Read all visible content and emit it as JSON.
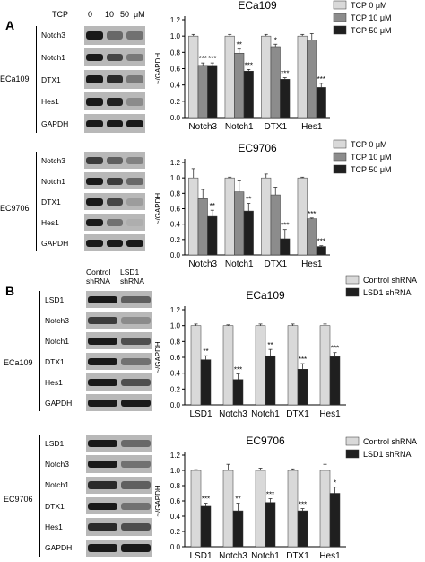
{
  "panels": {
    "A": {
      "letter": "A",
      "treatment_label": "TCP",
      "doses": [
        "0",
        "10",
        "50",
        "μM"
      ],
      "blots": [
        {
          "cell_line": "ECa109",
          "rows": [
            "Notch3",
            "Notch1",
            "DTX1",
            "Hes1",
            "GAPDH"
          ]
        },
        {
          "cell_line": "EC9706",
          "rows": [
            "Notch3",
            "Notch1",
            "DTX1",
            "Hes1",
            "GAPDH"
          ]
        }
      ]
    },
    "B": {
      "letter": "B",
      "col_header_1": "Control shRNA",
      "col_header_2": "LSD1 shRNA",
      "blots": [
        {
          "cell_line": "ECa109",
          "rows": [
            "LSD1",
            "Notch3",
            "Notch1",
            "DTX1",
            "Hes1",
            "GAPDH"
          ]
        },
        {
          "cell_line": "EC9706",
          "rows": [
            "LSD1",
            "Notch3",
            "Notch1",
            "DTX1",
            "Hes1",
            "GAPDH"
          ]
        }
      ]
    }
  },
  "colors": {
    "light": "#d9d9d9",
    "mid": "#8c8c8c",
    "dark": "#1f1f1f"
  },
  "chart_data": [
    {
      "type": "bar",
      "title": "ECa109",
      "ylabel": "~/GAPDH",
      "ylim": [
        0,
        1.2
      ],
      "yticks": [
        "0.0",
        "0.2",
        "0.4",
        "0.6",
        "0.8",
        "1.0",
        "1.2"
      ],
      "categories": [
        "Notch3",
        "Notch1",
        "DTX1",
        "Hes1"
      ],
      "series": [
        {
          "name": "TCP  0 μM",
          "color": "#d9d9d9",
          "values": [
            1.0,
            1.0,
            1.0,
            1.0
          ],
          "errors": [
            0.02,
            0.02,
            0.02,
            0.02
          ],
          "sig": [
            "",
            "",
            "",
            ""
          ]
        },
        {
          "name": "TCP  10 μM",
          "color": "#8c8c8c",
          "values": [
            0.64,
            0.79,
            0.87,
            0.95
          ],
          "errors": [
            0.03,
            0.05,
            0.03,
            0.08
          ],
          "sig": [
            "***",
            "**",
            "*",
            ""
          ]
        },
        {
          "name": "TCP  50 μM",
          "color": "#1f1f1f",
          "values": [
            0.64,
            0.57,
            0.47,
            0.37
          ],
          "errors": [
            0.03,
            0.02,
            0.02,
            0.05
          ],
          "sig": [
            "***",
            "***",
            "***",
            "***"
          ]
        }
      ]
    },
    {
      "type": "bar",
      "title": "EC9706",
      "ylabel": "~/GAPDH",
      "ylim": [
        0,
        1.2
      ],
      "yticks": [
        "0.0",
        "0.2",
        "0.4",
        "0.6",
        "0.8",
        "1.0",
        "1.2"
      ],
      "categories": [
        "Notch3",
        "Notch1",
        "DTX1",
        "Hes1"
      ],
      "series": [
        {
          "name": "TCP  0 μM",
          "color": "#d9d9d9",
          "values": [
            1.0,
            1.0,
            1.0,
            1.0
          ],
          "errors": [
            0.12,
            0.01,
            0.05,
            0.01
          ],
          "sig": [
            "",
            "",
            "",
            ""
          ]
        },
        {
          "name": "TCP  10 μM",
          "color": "#8c8c8c",
          "values": [
            0.73,
            0.82,
            0.78,
            0.47
          ],
          "errors": [
            0.12,
            0.14,
            0.1,
            0.01
          ],
          "sig": [
            "",
            "",
            "",
            "***"
          ]
        },
        {
          "name": "TCP  50 μM",
          "color": "#1f1f1f",
          "values": [
            0.5,
            0.57,
            0.21,
            0.11
          ],
          "errors": [
            0.08,
            0.1,
            0.12,
            0.01
          ],
          "sig": [
            "**",
            "**",
            "***",
            "***"
          ]
        }
      ]
    },
    {
      "type": "bar",
      "title": "ECa109",
      "ylabel": "~/GAPDH",
      "ylim": [
        0,
        1.2
      ],
      "yticks": [
        "0.0",
        "0.2",
        "0.4",
        "0.6",
        "0.8",
        "1.0",
        "1.2"
      ],
      "categories": [
        "LSD1",
        "Notch3",
        "Notch1",
        "DTX1",
        "Hes1"
      ],
      "series": [
        {
          "name": "Control shRNA",
          "color": "#d9d9d9",
          "values": [
            1.0,
            1.0,
            1.0,
            1.0,
            1.0
          ],
          "errors": [
            0.02,
            0.01,
            0.02,
            0.02,
            0.02
          ],
          "sig": [
            "",
            "",
            "",
            "",
            ""
          ]
        },
        {
          "name": "LSD1 shRNA",
          "color": "#1f1f1f",
          "values": [
            0.57,
            0.32,
            0.62,
            0.45,
            0.61
          ],
          "errors": [
            0.05,
            0.07,
            0.08,
            0.07,
            0.05
          ],
          "sig": [
            "**",
            "***",
            "**",
            "***",
            "***"
          ]
        }
      ]
    },
    {
      "type": "bar",
      "title": "EC9706",
      "ylabel": "~/GAPDH",
      "ylim": [
        0,
        1.2
      ],
      "yticks": [
        "0.0",
        "0.2",
        "0.4",
        "0.6",
        "0.8",
        "1.0",
        "1.2"
      ],
      "categories": [
        "LSD1",
        "Notch3",
        "Notch1",
        "DTX1",
        "Hes1"
      ],
      "series": [
        {
          "name": "Control shRNA",
          "color": "#d9d9d9",
          "values": [
            1.0,
            1.0,
            1.0,
            1.0,
            1.0
          ],
          "errors": [
            0.01,
            0.08,
            0.03,
            0.02,
            0.08
          ],
          "sig": [
            "",
            "",
            "",
            "",
            ""
          ]
        },
        {
          "name": "LSD1 shRNA",
          "color": "#1f1f1f",
          "values": [
            0.53,
            0.47,
            0.58,
            0.47,
            0.7
          ],
          "errors": [
            0.04,
            0.1,
            0.05,
            0.03,
            0.08
          ],
          "sig": [
            "***",
            "**",
            "***",
            "***",
            "*"
          ]
        }
      ]
    }
  ]
}
